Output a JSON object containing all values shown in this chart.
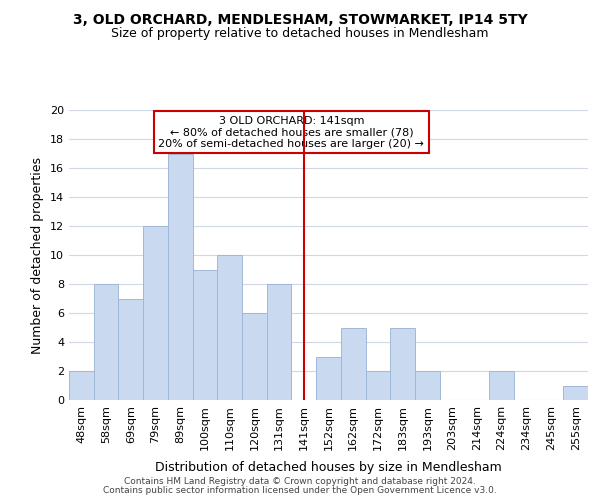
{
  "title": "3, OLD ORCHARD, MENDLESHAM, STOWMARKET, IP14 5TY",
  "subtitle": "Size of property relative to detached houses in Mendlesham",
  "xlabel": "Distribution of detached houses by size in Mendlesham",
  "ylabel": "Number of detached properties",
  "bar_labels": [
    "48sqm",
    "58sqm",
    "69sqm",
    "79sqm",
    "89sqm",
    "100sqm",
    "110sqm",
    "120sqm",
    "131sqm",
    "141sqm",
    "152sqm",
    "162sqm",
    "172sqm",
    "183sqm",
    "193sqm",
    "203sqm",
    "214sqm",
    "224sqm",
    "234sqm",
    "245sqm",
    "255sqm"
  ],
  "bar_values": [
    2,
    8,
    7,
    12,
    17,
    9,
    10,
    6,
    8,
    0,
    3,
    5,
    2,
    5,
    2,
    0,
    0,
    2,
    0,
    0,
    1
  ],
  "bar_color": "#c9d9f0",
  "bar_edge_color": "#a0b8d8",
  "vline_x_index": 9,
  "vline_color": "#cc0000",
  "annotation_title": "3 OLD ORCHARD: 141sqm",
  "annotation_line1": "← 80% of detached houses are smaller (78)",
  "annotation_line2": "20% of semi-detached houses are larger (20) →",
  "annotation_box_color": "#ffffff",
  "annotation_box_edge": "#cc0000",
  "ylim": [
    0,
    20
  ],
  "yticks": [
    0,
    2,
    4,
    6,
    8,
    10,
    12,
    14,
    16,
    18,
    20
  ],
  "footer1": "Contains HM Land Registry data © Crown copyright and database right 2024.",
  "footer2": "Contains public sector information licensed under the Open Government Licence v3.0.",
  "bg_color": "#ffffff",
  "grid_color": "#d0d8e8",
  "title_fontsize": 10,
  "subtitle_fontsize": 9,
  "ylabel_fontsize": 9,
  "xlabel_fontsize": 9,
  "tick_fontsize": 8,
  "footer_fontsize": 6.5
}
